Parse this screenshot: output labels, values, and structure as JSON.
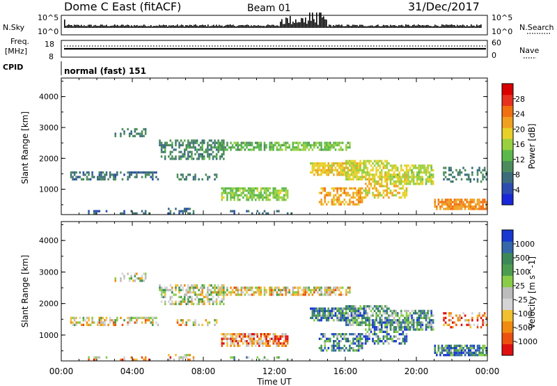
{
  "header": {
    "station": "Dome C East (fitACF)",
    "beam": "Beam 01",
    "date": "31/Dec/2017"
  },
  "sky_panel": {
    "left_label": "N.Sky",
    "left_ticks": [
      "10^5",
      "10^0"
    ],
    "right_label": "N.Search",
    "right_ticks": [
      "10^5",
      "10^0"
    ]
  },
  "freq_panel": {
    "left_label_1": "Freq.",
    "left_label_2": "[MHz]",
    "left_ticks": [
      "18",
      "8"
    ],
    "right_label": "Nave",
    "right_ticks": [
      "60",
      "0"
    ]
  },
  "cpid_panel": {
    "label": "CPID",
    "text": "normal (fast) 151"
  },
  "colors": {
    "white": "#ffffff",
    "power_scale": [
      "#1828d8",
      "#2c4cb0",
      "#3c6c7c",
      "#4c8c5c",
      "#5cb84c",
      "#98d040",
      "#e8d028",
      "#f0a020",
      "#f07010",
      "#e83020",
      "#d80000"
    ],
    "velocity_scale": [
      "#1838d0",
      "#3468a8",
      "#3c8858",
      "#4c9c50",
      "#88cc48",
      "#bcbcbc",
      "#d4d4d4",
      "#f0c030",
      "#f08a10",
      "#ec5010",
      "#e01010"
    ]
  },
  "chart_data": [
    {
      "type": "heatmap",
      "name": "power",
      "xlabel": "",
      "ylabel": "Slant Range [km]",
      "yticks": [
        "1000",
        "2000",
        "3000",
        "4000"
      ],
      "ylim": [
        180,
        4600
      ],
      "colorbar_label": "Power [dB]",
      "colorbar_ticks": [
        "4",
        "8",
        "12",
        "16",
        "20",
        "24",
        "28"
      ],
      "colorbar_range": [
        0,
        32
      ],
      "blobs": [
        {
          "x": [
            0.5,
            5.5
          ],
          "y": [
            1250,
            1550
          ],
          "v": 7,
          "d": 0.45
        },
        {
          "x": [
            1.0,
            5.0
          ],
          "y": [
            200,
            320
          ],
          "v": 6,
          "d": 0.3
        },
        {
          "x": [
            3.0,
            4.8
          ],
          "y": [
            2700,
            2950
          ],
          "v": 8,
          "d": 0.4
        },
        {
          "x": [
            5.5,
            9.2
          ],
          "y": [
            1950,
            2600
          ],
          "v": 9,
          "d": 0.55
        },
        {
          "x": [
            6.0,
            7.5
          ],
          "y": [
            200,
            420
          ],
          "v": 7,
          "d": 0.5
        },
        {
          "x": [
            6.5,
            9.0
          ],
          "y": [
            1280,
            1500
          ],
          "v": 8,
          "d": 0.4
        },
        {
          "x": [
            8.8,
            12.0
          ],
          "y": [
            2250,
            2550
          ],
          "v": 12,
          "d": 0.65
        },
        {
          "x": [
            9.0,
            12.8
          ],
          "y": [
            650,
            1050
          ],
          "v": 15,
          "d": 0.7
        },
        {
          "x": [
            12.0,
            16.3
          ],
          "y": [
            2250,
            2550
          ],
          "v": 14,
          "d": 0.7
        },
        {
          "x": [
            14.0,
            16.8
          ],
          "y": [
            1450,
            1900
          ],
          "v": 20,
          "d": 0.75
        },
        {
          "x": [
            14.5,
            17.0
          ],
          "y": [
            500,
            1100
          ],
          "v": 22,
          "d": 0.55
        },
        {
          "x": [
            16.0,
            18.5
          ],
          "y": [
            1300,
            1950
          ],
          "v": 18,
          "d": 0.7
        },
        {
          "x": [
            17.0,
            19.5
          ],
          "y": [
            700,
            1500
          ],
          "v": 20,
          "d": 0.5
        },
        {
          "x": [
            18.5,
            21.0
          ],
          "y": [
            1150,
            1800
          ],
          "v": 17,
          "d": 0.65
        },
        {
          "x": [
            21.0,
            24.0
          ],
          "y": [
            300,
            700
          ],
          "v": 24,
          "d": 0.75
        },
        {
          "x": [
            21.5,
            24.0
          ],
          "y": [
            1200,
            1700
          ],
          "v": 8,
          "d": 0.3
        },
        {
          "x": [
            9.5,
            13.0
          ],
          "y": [
            200,
            350
          ],
          "v": 6,
          "d": 0.25
        }
      ]
    },
    {
      "type": "heatmap",
      "name": "velocity",
      "xlabel": "Time UT",
      "ylabel": "Slant Range [km]",
      "xticks": [
        "00:00",
        "04:00",
        "08:00",
        "12:00",
        "16:00",
        "20:00",
        "00:00"
      ],
      "xlim": [
        0,
        24
      ],
      "yticks": [
        "1000",
        "2000",
        "3000",
        "4000"
      ],
      "ylim": [
        180,
        4600
      ],
      "colorbar_label": "Velocity [m s^-1]",
      "colorbar_ticks": [
        "1000",
        "500",
        "100",
        "25",
        "-25",
        "-100",
        "-500",
        "-1000"
      ],
      "blobs": [
        {
          "x": [
            0.5,
            5.5
          ],
          "y": [
            1250,
            1550
          ],
          "v": 6,
          "d": 0.45
        },
        {
          "x": [
            1.0,
            5.0
          ],
          "y": [
            200,
            320
          ],
          "v": 7,
          "d": 0.3
        },
        {
          "x": [
            3.0,
            4.8
          ],
          "y": [
            2700,
            2950
          ],
          "v": 5,
          "d": 0.4
        },
        {
          "x": [
            5.5,
            9.2
          ],
          "y": [
            1950,
            2600
          ],
          "v": 5,
          "d": 0.55
        },
        {
          "x": [
            6.0,
            7.5
          ],
          "y": [
            200,
            420
          ],
          "v": 7,
          "d": 0.5
        },
        {
          "x": [
            6.5,
            9.0
          ],
          "y": [
            1280,
            1500
          ],
          "v": 6,
          "d": 0.4
        },
        {
          "x": [
            8.8,
            12.0
          ],
          "y": [
            2250,
            2550
          ],
          "v": 6,
          "d": 0.65
        },
        {
          "x": [
            9.0,
            12.8
          ],
          "y": [
            650,
            1050
          ],
          "v": 8,
          "d": 0.7
        },
        {
          "x": [
            12.0,
            16.3
          ],
          "y": [
            2250,
            2550
          ],
          "v": 6,
          "d": 0.7
        },
        {
          "x": [
            14.0,
            16.8
          ],
          "y": [
            1450,
            1900
          ],
          "v": 2,
          "d": 0.75
        },
        {
          "x": [
            14.5,
            17.0
          ],
          "y": [
            500,
            1100
          ],
          "v": 2,
          "d": 0.55
        },
        {
          "x": [
            16.0,
            18.5
          ],
          "y": [
            1300,
            1950
          ],
          "v": 3,
          "d": 0.7
        },
        {
          "x": [
            17.0,
            19.5
          ],
          "y": [
            700,
            1500
          ],
          "v": 2,
          "d": 0.5
        },
        {
          "x": [
            18.5,
            21.0
          ],
          "y": [
            1150,
            1800
          ],
          "v": 3,
          "d": 0.65
        },
        {
          "x": [
            21.0,
            24.0
          ],
          "y": [
            300,
            700
          ],
          "v": 2,
          "d": 0.75
        },
        {
          "x": [
            21.5,
            24.0
          ],
          "y": [
            1200,
            1700
          ],
          "v": 8,
          "d": 0.3
        },
        {
          "x": [
            9.5,
            13.0
          ],
          "y": [
            200,
            350
          ],
          "v": 4,
          "d": 0.25
        }
      ]
    }
  ]
}
